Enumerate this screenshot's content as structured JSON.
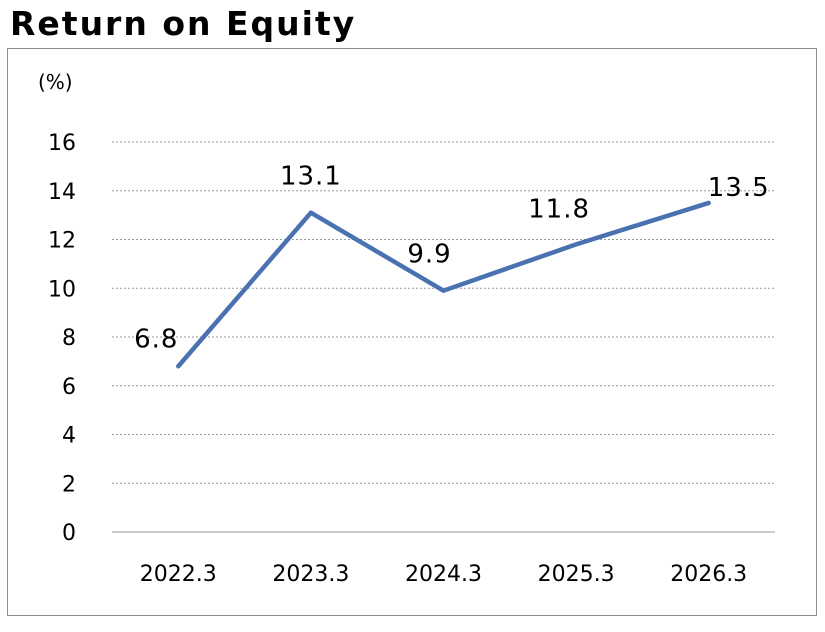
{
  "title": "Return on Equity",
  "chart_data": {
    "type": "line",
    "title": "Return on Equity",
    "ylabel": "(%)",
    "xlabel": "",
    "categories": [
      "2022.3",
      "2023.3",
      "2024.3",
      "2025.3",
      "2026.3"
    ],
    "series": [
      {
        "name": "",
        "values": [
          6.8,
          13.1,
          9.9,
          11.8,
          13.5
        ],
        "color": "#4a72b0"
      }
    ],
    "data_labels": [
      "6.8",
      "13.1",
      "9.9",
      "11.8",
      "13.5"
    ],
    "ylim": [
      0,
      16
    ],
    "yticks": [
      0,
      2,
      4,
      6,
      8,
      10,
      12,
      14,
      16
    ],
    "grid": true,
    "legend": "none"
  }
}
